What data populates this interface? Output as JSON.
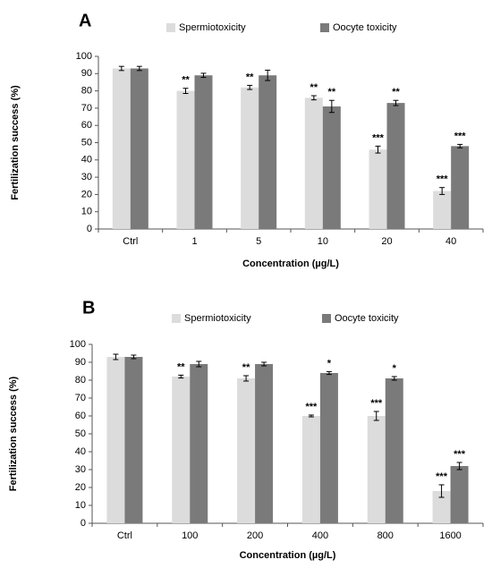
{
  "colors": {
    "series1": "#dcdcdc",
    "series2": "#7a7a7a",
    "axis": "#555555",
    "errorbar": "#000000"
  },
  "chart_data": [
    {
      "type": "bar",
      "panel_label": "A",
      "xlabel": "Concentration (µg/L)",
      "ylabel": "Fertilization success (%)",
      "ylim": [
        0,
        100
      ],
      "yticks": [
        0,
        10,
        20,
        30,
        40,
        50,
        60,
        70,
        80,
        90,
        100
      ],
      "grid": false,
      "legend_position": "top",
      "categories": [
        "Ctrl",
        "1",
        "5",
        "10",
        "20",
        "40"
      ],
      "series": [
        {
          "name": "Spermiotoxicity",
          "values": [
            93,
            80,
            82,
            76,
            46,
            22
          ],
          "errors": [
            1.2,
            1.5,
            1.2,
            1.2,
            2,
            2
          ],
          "significance": [
            "",
            "**",
            "**",
            "**",
            "***",
            "***"
          ]
        },
        {
          "name": "Oocyte toxicity",
          "values": [
            93,
            89,
            89,
            71,
            73,
            48
          ],
          "errors": [
            1.2,
            1.2,
            3,
            3.5,
            1.5,
            1
          ],
          "significance": [
            "",
            "",
            "",
            "**",
            "**",
            "***"
          ]
        }
      ]
    },
    {
      "type": "bar",
      "panel_label": "B",
      "xlabel": "Concentration (µg/L)",
      "ylabel": "Fertilization success (%)",
      "ylim": [
        0,
        100
      ],
      "yticks": [
        0,
        10,
        20,
        30,
        40,
        50,
        60,
        70,
        80,
        90,
        100
      ],
      "grid": false,
      "legend_position": "top",
      "categories": [
        "Ctrl",
        "100",
        "200",
        "400",
        "800",
        "1600"
      ],
      "series": [
        {
          "name": "Spermiotoxicity",
          "values": [
            93,
            82,
            81,
            60,
            60,
            18
          ],
          "errors": [
            1.5,
            0.8,
            1.5,
            0.5,
            2.5,
            3.5
          ],
          "significance": [
            "",
            "**",
            "**",
            "***",
            "***",
            "***"
          ]
        },
        {
          "name": "Oocyte toxicity",
          "values": [
            93,
            89,
            89,
            84,
            81,
            32
          ],
          "errors": [
            1,
            1.5,
            1,
            0.8,
            1,
            2
          ],
          "significance": [
            "",
            "",
            "",
            "*",
            "*",
            "***"
          ]
        }
      ]
    }
  ]
}
